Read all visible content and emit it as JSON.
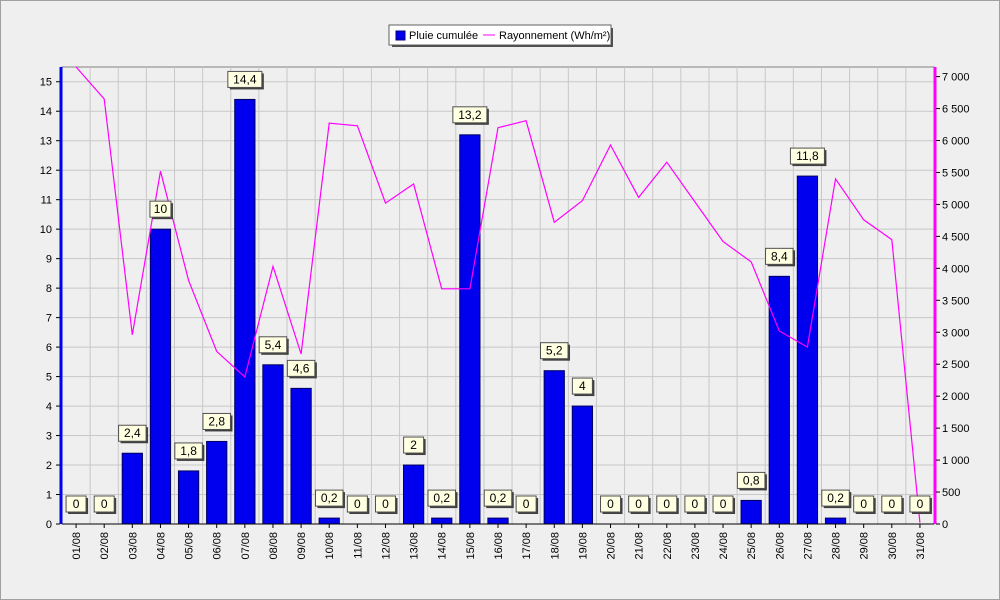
{
  "chart_data": {
    "type": "bar",
    "categories": [
      "01/08",
      "02/08",
      "03/08",
      "04/08",
      "05/08",
      "06/08",
      "07/08",
      "08/08",
      "09/08",
      "10/08",
      "11/08",
      "12/08",
      "13/08",
      "14/08",
      "15/08",
      "16/08",
      "17/08",
      "18/08",
      "19/08",
      "20/08",
      "21/08",
      "22/08",
      "23/08",
      "24/08",
      "25/08",
      "26/08",
      "27/08",
      "28/08",
      "29/08",
      "30/08",
      "31/08"
    ],
    "series": [
      {
        "name": "Pluie cumulée",
        "type": "bar",
        "axis": "left",
        "color": "#0000ee",
        "values": [
          0,
          0,
          2.4,
          10,
          1.8,
          2.8,
          14.4,
          5.4,
          4.6,
          0.2,
          0,
          0,
          2,
          0.2,
          13.2,
          0.2,
          0,
          5.2,
          4,
          0,
          0,
          0,
          0,
          0,
          0.8,
          8.4,
          11.8,
          0.2,
          0,
          0,
          0
        ],
        "data_labels": [
          "0",
          "0",
          "2,4",
          "10",
          "1,8",
          "2,8",
          "14,4",
          "5,4",
          "4,6",
          "0,2",
          "0",
          "0",
          "2",
          "0,2",
          "13,2",
          "0,2",
          "0",
          "5,2",
          "4",
          "0",
          "0",
          "0",
          "0",
          "0",
          "0,8",
          "8,4",
          "11,8",
          "0,2",
          "0",
          "0",
          "0"
        ]
      },
      {
        "name": "Rayonnement (Wh/m²)",
        "type": "line",
        "axis": "right",
        "color": "#ff00ff",
        "values": [
          7150,
          6650,
          2960,
          5520,
          3810,
          2700,
          2300,
          4030,
          2660,
          6270,
          6230,
          5020,
          5320,
          3680,
          3680,
          6200,
          6310,
          4720,
          5060,
          5930,
          5110,
          5660,
          5040,
          4420,
          4100,
          3020,
          2770,
          5400,
          4760,
          4450,
          20
        ]
      }
    ],
    "y_left": {
      "ylim": [
        0,
        15.5
      ],
      "ticks": [
        "0",
        "1",
        "2",
        "3",
        "4",
        "5",
        "6",
        "7",
        "8",
        "9",
        "10",
        "11",
        "12",
        "13",
        "14",
        "15"
      ]
    },
    "y_right": {
      "ylim": [
        0,
        7150
      ],
      "ticks": [
        "0",
        "500",
        "1 000",
        "1 500",
        "2 000",
        "2 500",
        "3 000",
        "3 500",
        "4 000",
        "4 500",
        "5 000",
        "5 500",
        "6 000",
        "6 500",
        "7 000"
      ]
    },
    "grid": true,
    "legend_position": "top-center"
  }
}
